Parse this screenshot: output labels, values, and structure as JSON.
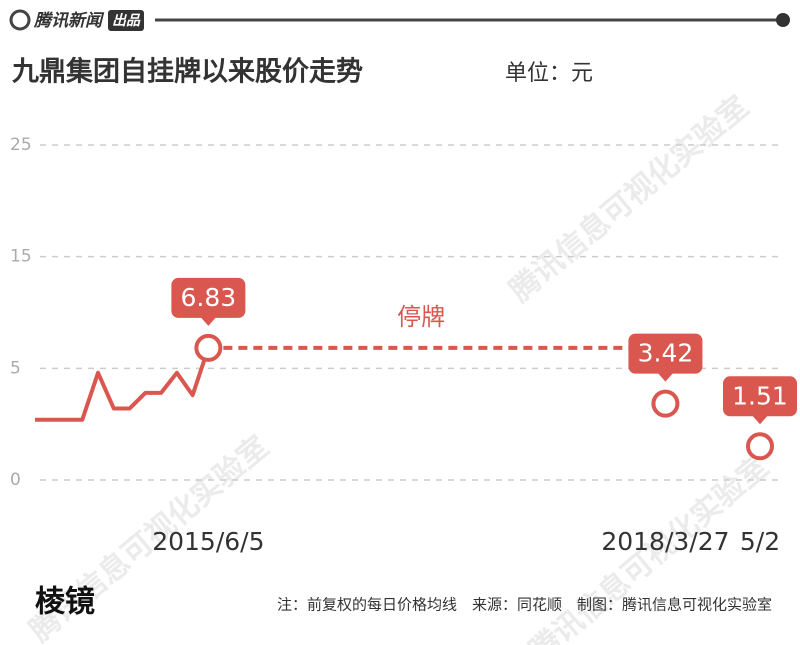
{
  "header": {
    "brand": "腾讯新闻",
    "badge": "出品"
  },
  "watermark": "腾讯信息可视化实验室",
  "chart_data": {
    "type": "line",
    "title": "九鼎集团自挂牌以来股价走势",
    "subtitle": "单位：元",
    "categories": [
      null,
      null,
      null,
      null,
      null,
      null,
      null,
      null,
      null,
      null,
      null,
      "2015/6/5",
      null,
      null,
      null,
      null,
      null,
      null,
      null,
      null,
      null,
      null,
      null,
      null,
      null,
      null,
      null,
      null,
      null,
      null,
      null,
      null,
      null,
      null,
      null,
      null,
      null,
      null,
      null,
      null,
      "2018/3/27",
      null,
      null,
      null,
      null,
      null,
      "5/2"
    ],
    "series": [
      {
        "name": "九鼎集团",
        "color": "#d9574f",
        "values": [
          2.7,
          2.7,
          2.7,
          2.7,
          4.8,
          3.2,
          3.2,
          3.9,
          3.9,
          4.8,
          3.8,
          6.83,
          null,
          null,
          null,
          null,
          null,
          null,
          null,
          null,
          null,
          null,
          null,
          null,
          null,
          null,
          null,
          null,
          null,
          null,
          null,
          null,
          null,
          null,
          null,
          null,
          null,
          null,
          null,
          null,
          3.42,
          null,
          null,
          null,
          null,
          null,
          1.51
        ],
        "value_labels": [
          null,
          null,
          null,
          null,
          null,
          null,
          null,
          null,
          null,
          null,
          null,
          "6.83",
          null,
          null,
          null,
          null,
          null,
          null,
          null,
          null,
          null,
          null,
          null,
          null,
          null,
          null,
          null,
          null,
          null,
          null,
          null,
          null,
          null,
          null,
          null,
          null,
          null,
          null,
          null,
          null,
          "3.42",
          null,
          null,
          null,
          null,
          null,
          "1.51"
        ]
      },
      {
        "name": "停牌",
        "color": "#d9574f",
        "dashed": true,
        "values": [
          null,
          null,
          null,
          null,
          null,
          null,
          null,
          null,
          null,
          null,
          null,
          6.83,
          null,
          null,
          null,
          null,
          null,
          null,
          null,
          null,
          null,
          null,
          null,
          null,
          null,
          null,
          null,
          null,
          null,
          null,
          null,
          null,
          null,
          null,
          null,
          null,
          null,
          null,
          6.83,
          null,
          null,
          null,
          null,
          null,
          null,
          null,
          null
        ]
      }
    ],
    "ylim": [
      0,
      25
    ],
    "yticks": [
      25,
      15,
      5,
      0
    ],
    "grid": true
  },
  "footer": {
    "logo": "棱镜",
    "note": "注：前复权的每日价格均线　来源：同花顺　制图：腾讯信息可视化实验室"
  }
}
